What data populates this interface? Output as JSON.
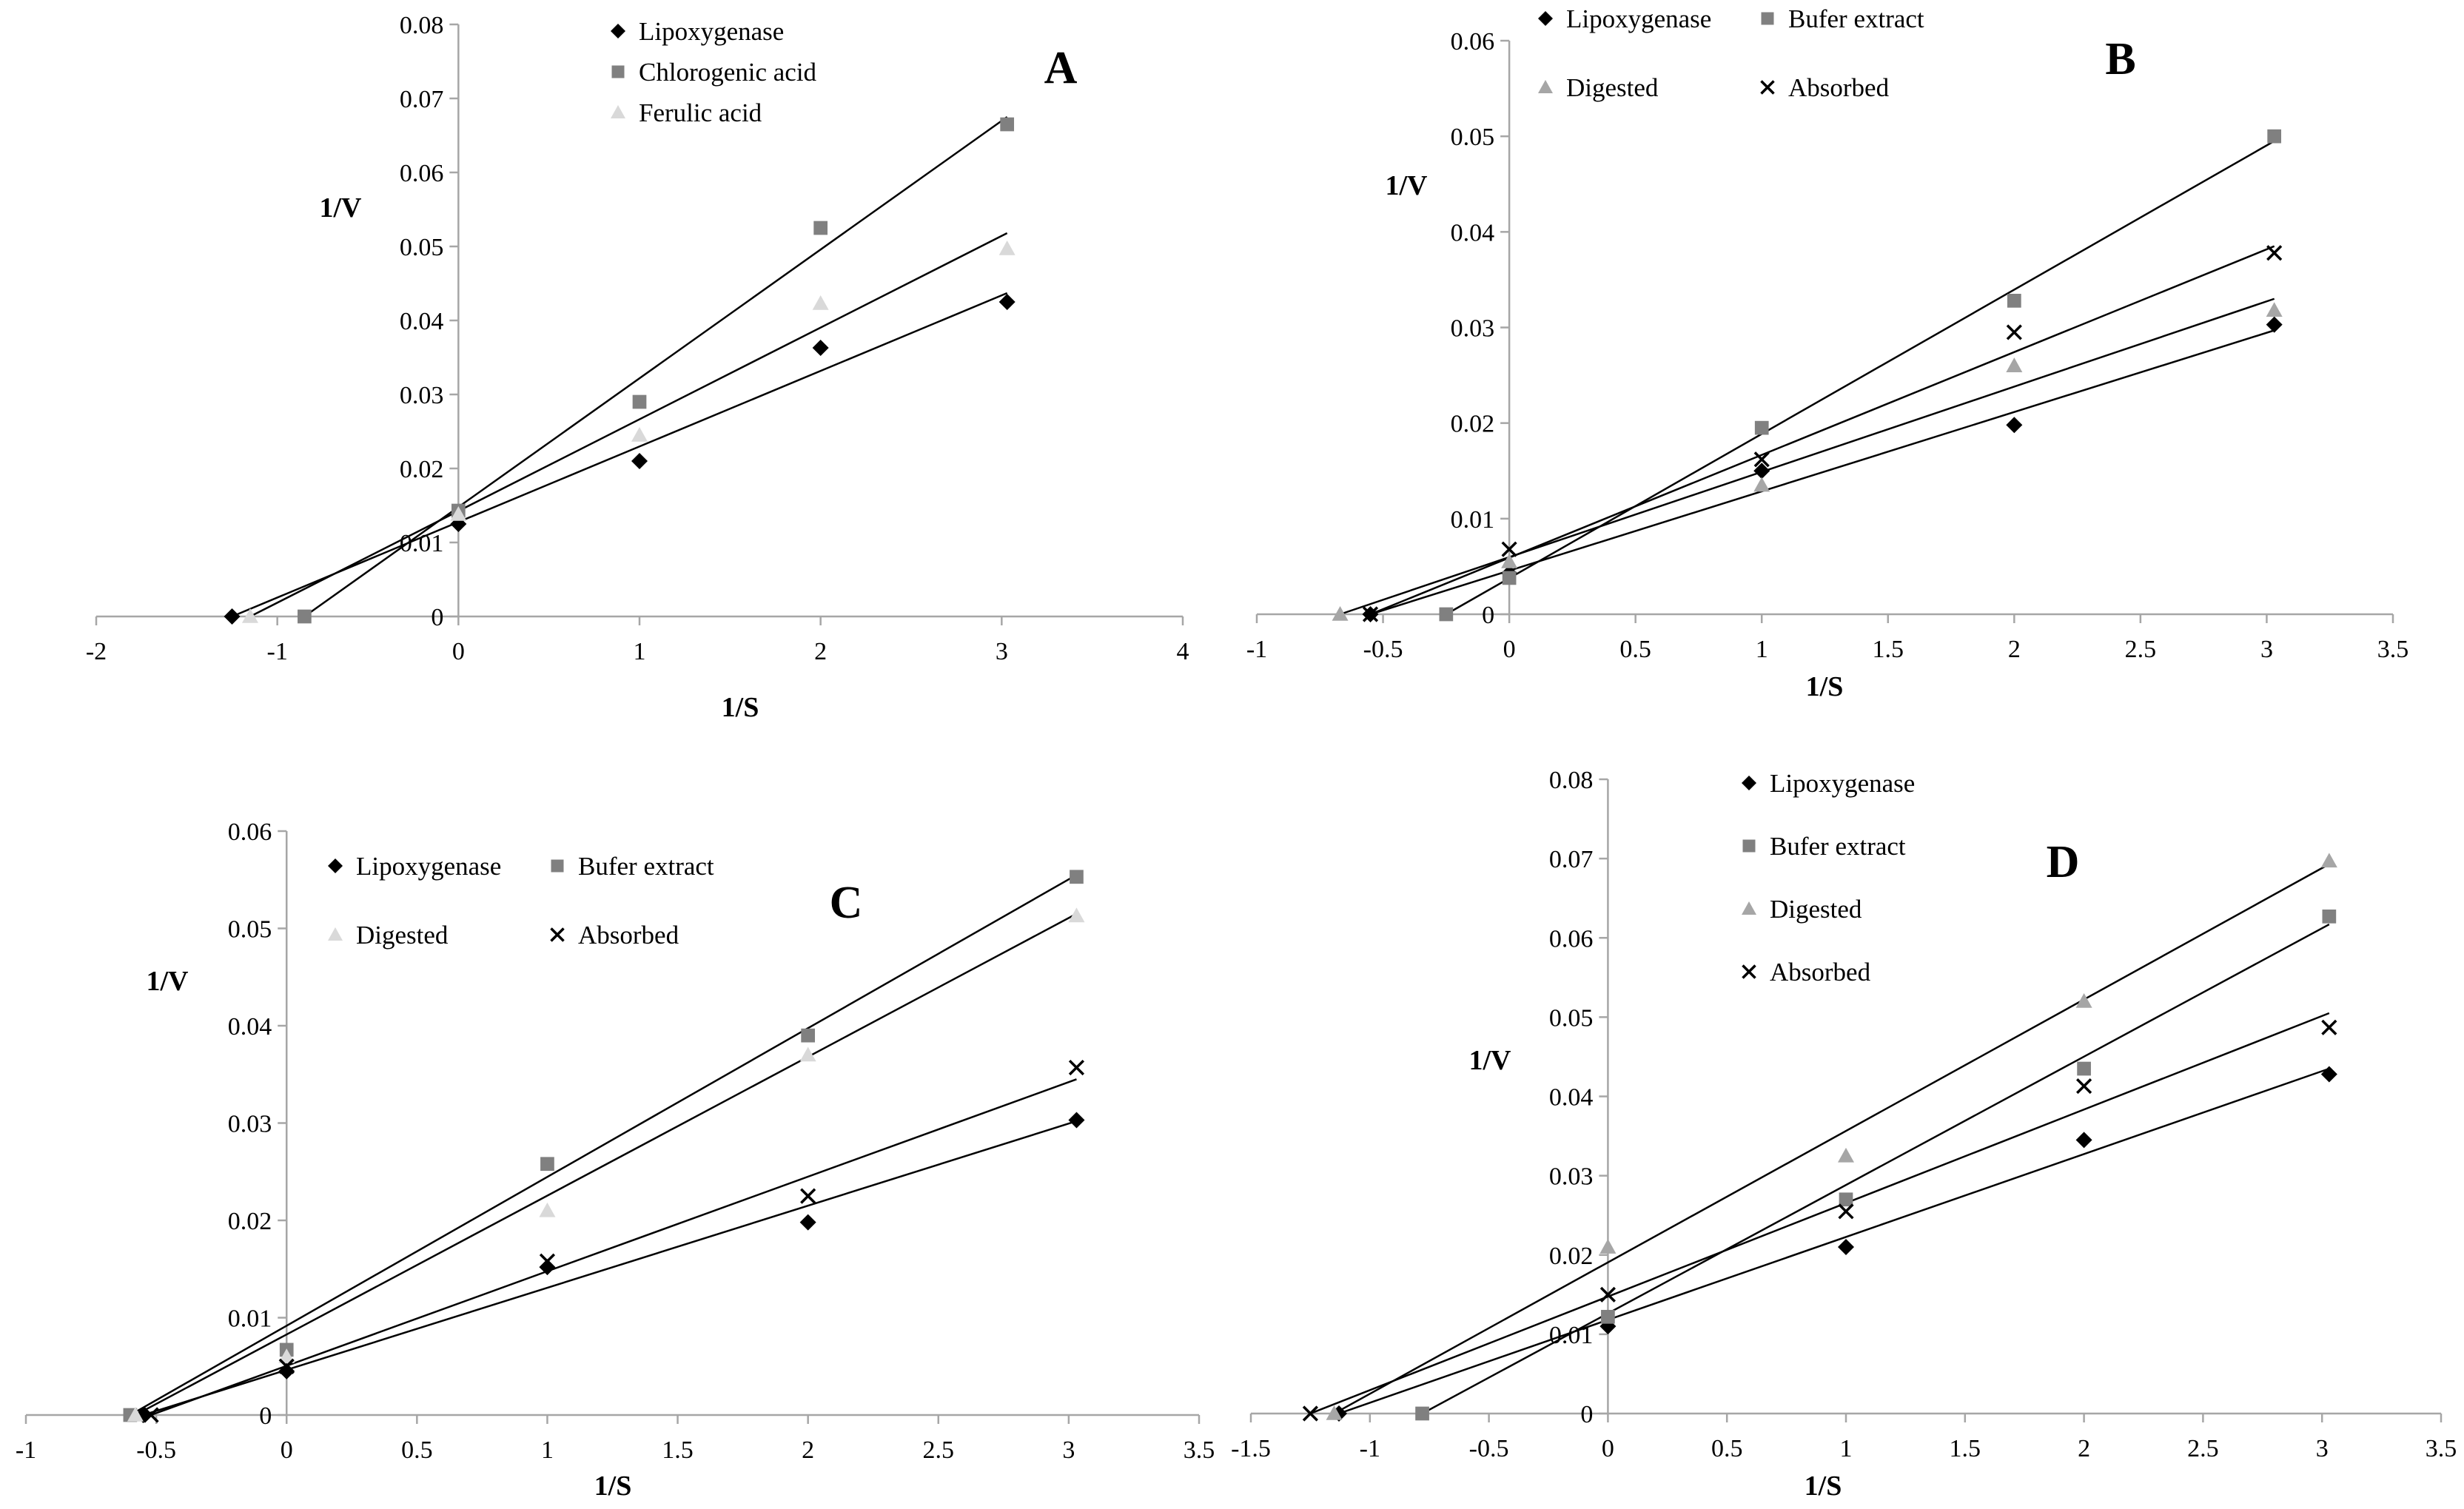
{
  "colors": {
    "axis": "#a6a6a6",
    "line": "#000000",
    "lipoxygenase": "#000000",
    "chlorogenic": "#808080",
    "ferulic": "#d9d9d9",
    "bufer": "#808080",
    "digested": "#a6a6a6",
    "absorbed": "#000000"
  },
  "chart_data": [
    {
      "type": "scatter",
      "title": "A",
      "xlabel": "1/S",
      "ylabel": "1/V",
      "xlim": [
        -2,
        4
      ],
      "ylim": [
        0,
        0.08
      ],
      "xticks": [
        "-2",
        "-1",
        "0",
        "1",
        "2",
        "3",
        "4"
      ],
      "yticks": [
        "0",
        "0.01",
        "0.02",
        "0.03",
        "0.04",
        "0.05",
        "0.06",
        "0.07",
        "0.08"
      ],
      "series": [
        {
          "name": "Lipoxygenase",
          "marker": "diamond",
          "color": "#000000",
          "x": [
            -1.25,
            0,
            1,
            2,
            3.03
          ],
          "y": [
            0,
            0.0125,
            0.021,
            0.0363,
            0.0425
          ],
          "fit": {
            "x": [
              -1.25,
              3.03
            ],
            "y": [
              0,
              0.0437
            ]
          }
        },
        {
          "name": "Chlorogenic acid",
          "marker": "square",
          "color": "#808080",
          "x": [
            -0.85,
            0,
            1,
            2,
            3.03
          ],
          "y": [
            0,
            0.0143,
            0.029,
            0.0525,
            0.0665
          ],
          "fit": {
            "x": [
              -0.85,
              3.03
            ],
            "y": [
              0,
              0.0675
            ]
          }
        },
        {
          "name": "Ferulic acid",
          "marker": "triangle",
          "color": "#d9d9d9",
          "x": [
            -1.15,
            0,
            1,
            2,
            3.03
          ],
          "y": [
            0,
            0.0138,
            0.0245,
            0.0423,
            0.0497
          ],
          "fit": {
            "x": [
              -1.15,
              3.03
            ],
            "y": [
              0,
              0.0518
            ]
          }
        }
      ]
    },
    {
      "type": "scatter",
      "title": "B",
      "xlabel": "1/S",
      "ylabel": "1/V",
      "xlim": [
        -1,
        3.5
      ],
      "ylim": [
        0,
        0.06
      ],
      "xticks": [
        "-1",
        "-0.5",
        "0",
        "0.5",
        "1",
        "1.5",
        "2",
        "2.5",
        "3",
        "3.5"
      ],
      "yticks": [
        "0",
        "0.01",
        "0.02",
        "0.03",
        "0.04",
        "0.05",
        "0.06"
      ],
      "series": [
        {
          "name": "Lipoxygenase",
          "marker": "diamond",
          "color": "#000000",
          "x": [
            -0.55,
            0,
            1,
            2,
            3.03
          ],
          "y": [
            0,
            0.0043,
            0.015,
            0.0198,
            0.0303
          ],
          "fit": {
            "x": [
              -0.55,
              3.03
            ],
            "y": [
              0,
              0.0297
            ]
          }
        },
        {
          "name": "Bufer extract",
          "marker": "square",
          "color": "#808080",
          "x": [
            -0.25,
            0,
            1,
            2,
            3.03
          ],
          "y": [
            0,
            0.0038,
            0.0195,
            0.0328,
            0.05
          ],
          "fit": {
            "x": [
              -0.25,
              3.03
            ],
            "y": [
              0,
              0.0495
            ]
          }
        },
        {
          "name": "Digested",
          "marker": "triangle",
          "color": "#a6a6a6",
          "x": [
            -0.67,
            0,
            1,
            2,
            3.03
          ],
          "y": [
            0,
            0.0055,
            0.0135,
            0.026,
            0.0318
          ],
          "fit": {
            "x": [
              -0.67,
              3.03
            ],
            "y": [
              0,
              0.033
            ]
          }
        },
        {
          "name": "Absorbed",
          "marker": "cross",
          "color": "#000000",
          "x": [
            -0.55,
            0,
            1,
            2,
            3.03
          ],
          "y": [
            0,
            0.0068,
            0.0162,
            0.0295,
            0.0378
          ],
          "fit": {
            "x": [
              -0.55,
              3.03
            ],
            "y": [
              0,
              0.0385
            ]
          }
        }
      ]
    },
    {
      "type": "scatter",
      "title": "C",
      "xlabel": "1/S",
      "ylabel": "1/V",
      "xlim": [
        -1,
        3.5
      ],
      "ylim": [
        0,
        0.06
      ],
      "xticks": [
        "-1",
        "-0.5",
        "0",
        "0.5",
        "1",
        "1.5",
        "2",
        "2.5",
        "3",
        "3.5"
      ],
      "yticks": [
        "0",
        "0.01",
        "0.02",
        "0.03",
        "0.04",
        "0.05",
        "0.06"
      ],
      "series": [
        {
          "name": "Lipoxygenase",
          "marker": "diamond",
          "color": "#000000",
          "x": [
            -0.55,
            0,
            1,
            2,
            3.03
          ],
          "y": [
            0,
            0.0045,
            0.0152,
            0.0198,
            0.0303
          ],
          "fit": {
            "x": [
              -0.55,
              3.03
            ],
            "y": [
              0,
              0.0302
            ]
          }
        },
        {
          "name": "Bufer extract",
          "marker": "square",
          "color": "#808080",
          "x": [
            -0.6,
            0,
            1,
            2,
            3.03
          ],
          "y": [
            0,
            0.0067,
            0.0258,
            0.039,
            0.0553
          ],
          "fit": {
            "x": [
              -0.6,
              3.03
            ],
            "y": [
              0,
              0.0555
            ]
          }
        },
        {
          "name": "Digested",
          "marker": "triangle",
          "color": "#d9d9d9",
          "x": [
            -0.58,
            0,
            1,
            2,
            3.03
          ],
          "y": [
            0,
            0.006,
            0.021,
            0.037,
            0.0513
          ],
          "fit": {
            "x": [
              -0.58,
              3.03
            ],
            "y": [
              0,
              0.0515
            ]
          }
        },
        {
          "name": "Absorbed",
          "marker": "cross",
          "color": "#000000",
          "x": [
            -0.52,
            0,
            1,
            2,
            3.03
          ],
          "y": [
            0,
            0.005,
            0.0158,
            0.0225,
            0.0357
          ],
          "fit": {
            "x": [
              -0.52,
              3.03
            ],
            "y": [
              0,
              0.0345
            ]
          }
        }
      ]
    },
    {
      "type": "scatter",
      "title": "D",
      "xlabel": "1/S",
      "ylabel": "1/V",
      "xlim": [
        -1.5,
        3.5
      ],
      "ylim": [
        0,
        0.08
      ],
      "xticks": [
        "-1.5",
        "-1",
        "-0.5",
        "0",
        "0.5",
        "1",
        "1.5",
        "2",
        "2.5",
        "3",
        "3.5"
      ],
      "yticks": [
        "0",
        "0.01",
        "0.02",
        "0.03",
        "0.04",
        "0.05",
        "0.06",
        "0.07",
        "0.08"
      ],
      "series": [
        {
          "name": "Lipoxygenase",
          "marker": "diamond",
          "color": "#000000",
          "x": [
            -1.13,
            0,
            1,
            2,
            3.03
          ],
          "y": [
            0,
            0.011,
            0.021,
            0.0345,
            0.0428
          ],
          "fit": {
            "x": [
              -1.13,
              3.03
            ],
            "y": [
              0,
              0.0435
            ]
          }
        },
        {
          "name": "Bufer extract",
          "marker": "square",
          "color": "#808080",
          "x": [
            -0.78,
            0,
            1,
            2,
            3.03
          ],
          "y": [
            0,
            0.0122,
            0.027,
            0.0435,
            0.0627
          ],
          "fit": {
            "x": [
              -0.78,
              3.03
            ],
            "y": [
              0,
              0.0617
            ]
          }
        },
        {
          "name": "Digested",
          "marker": "triangle",
          "color": "#a6a6a6",
          "x": [
            -1.15,
            0,
            1,
            2,
            3.03
          ],
          "y": [
            0,
            0.021,
            0.0325,
            0.052,
            0.0697
          ],
          "fit": {
            "x": [
              -1.15,
              3.03
            ],
            "y": [
              0,
              0.0693
            ]
          }
        },
        {
          "name": "Absorbed",
          "marker": "cross",
          "color": "#000000",
          "x": [
            -1.25,
            0,
            1,
            2,
            3.03
          ],
          "y": [
            0,
            0.015,
            0.0255,
            0.0413,
            0.0487
          ],
          "fit": {
            "x": [
              -1.25,
              3.03
            ],
            "y": [
              0,
              0.0505
            ]
          }
        }
      ]
    }
  ]
}
